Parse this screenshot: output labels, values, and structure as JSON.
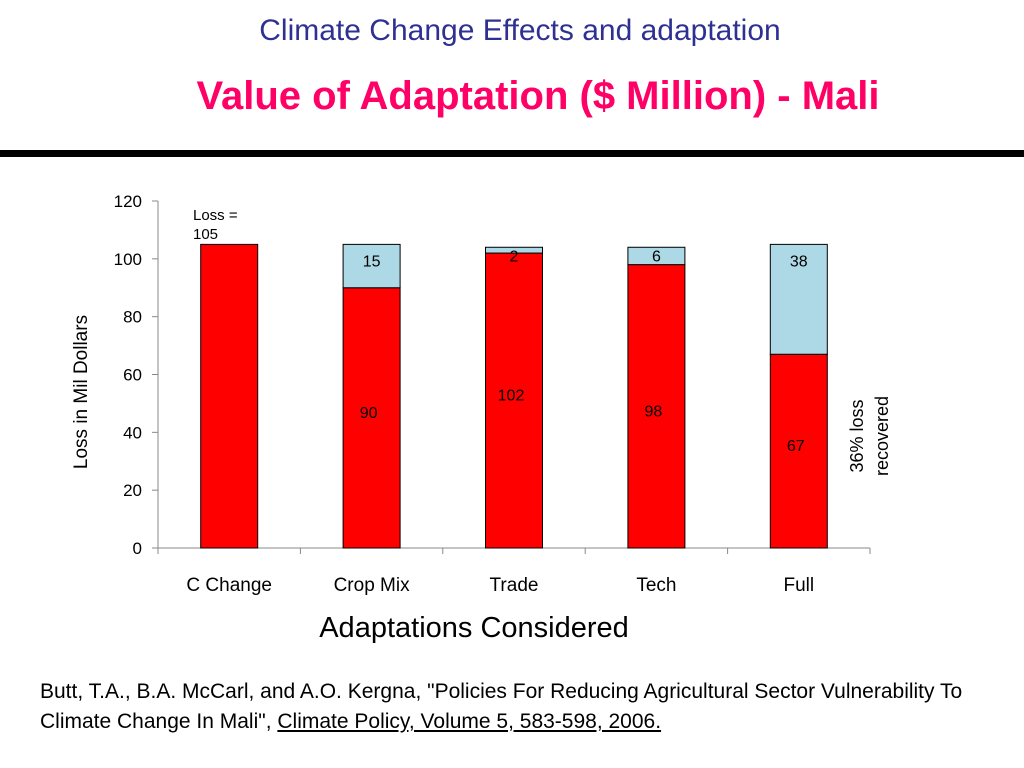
{
  "header": {
    "subtitle": "Climate Change Effects and adaptation",
    "title": "Value of Adaptation ($ Million) - Mali"
  },
  "colors": {
    "subtitle": "#2e3192",
    "title": "#ff0066",
    "loss_bar": "#ff0000",
    "recovered_bar": "#add8e6"
  },
  "chart_data": {
    "type": "bar",
    "stacked": true,
    "categories": [
      "C Change",
      "Crop Mix",
      "Trade",
      "Tech",
      "Full"
    ],
    "series": [
      {
        "values": [
          105,
          90,
          102,
          98,
          67
        ]
      },
      {
        "values": [
          0,
          15,
          2,
          6,
          38
        ]
      }
    ],
    "data_labels": {
      "bottom": [
        null,
        "90",
        "102",
        "98",
        "67"
      ],
      "top": [
        null,
        "15",
        "2",
        "6",
        "38"
      ]
    },
    "annotations": {
      "loss": "Loss = 105",
      "recovered": [
        "36% loss",
        "recovered"
      ]
    },
    "xlabel": "Adaptations Considered",
    "ylabel": "Loss in Mil Dollars",
    "ylim": [
      0,
      120
    ],
    "yticks": [
      0,
      20,
      40,
      60,
      80,
      100,
      120
    ],
    "grid": false,
    "legend": "none"
  },
  "citation": {
    "text": "Butt, T.A., B.A. McCarl, and A.O. Kergna, \"Policies For Reducing Agricultural Sector Vulnerability To Climate Change In Mali\", ",
    "journal": "Climate Policy, Volume 5, 583-598, 2006."
  }
}
